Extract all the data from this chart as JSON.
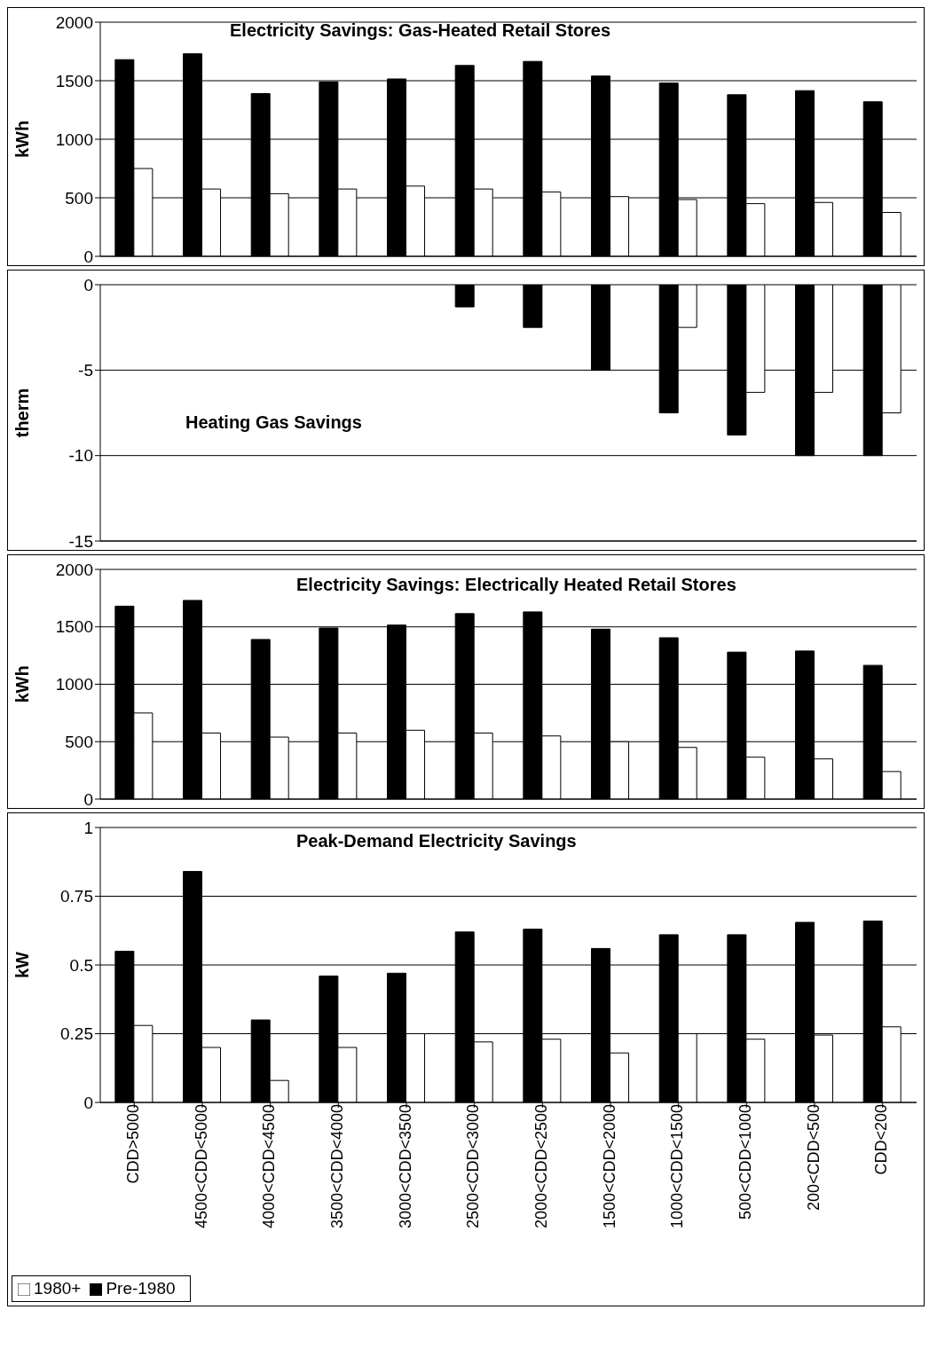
{
  "chart_data": [
    {
      "type": "bar",
      "title": "Electricity Savings: Gas-Heated Retail Stores",
      "ylabel": "kWh",
      "categories": [
        null,
        null,
        null,
        null,
        null,
        null,
        null,
        null,
        null,
        null,
        null,
        null
      ],
      "series": [
        {
          "color": "#000000",
          "values": [
            1680,
            1730,
            1390,
            1490,
            1515,
            1630,
            1665,
            1540,
            1480,
            1380,
            1415,
            1320
          ]
        },
        {
          "color": "#ffffff",
          "values": [
            750,
            575,
            535,
            575,
            600,
            575,
            550,
            510,
            485,
            450,
            460,
            375
          ]
        }
      ],
      "ylim": [
        0,
        2000
      ],
      "yticks": [
        0,
        500,
        1000,
        1500,
        2000
      ],
      "grid": "y",
      "tick_labels": "y",
      "legend": false
    },
    {
      "type": "bar",
      "title": "Heating Gas Savings",
      "ylabel": "therm",
      "categories": [
        null,
        null,
        null,
        null,
        null,
        null,
        null,
        null,
        null,
        null,
        null,
        null
      ],
      "series": [
        {
          "color": "#000000",
          "values": [
            0,
            0,
            0,
            0,
            0,
            -1.3,
            -2.5,
            -5,
            -7.5,
            -8.8,
            -10,
            -10
          ]
        },
        {
          "color": "#ffffff",
          "values": [
            0,
            0,
            0,
            0,
            0,
            0,
            0,
            0,
            -2.5,
            -6.3,
            -6.3,
            -7.5
          ]
        }
      ],
      "ylim": [
        -15,
        0
      ],
      "yticks": [
        -15,
        -10,
        -5,
        0
      ],
      "grid": "y",
      "tick_labels": "y",
      "legend": false
    },
    {
      "type": "bar",
      "title": "Electricity Savings: Electrically Heated Retail Stores",
      "ylabel": "kWh",
      "categories": [
        null,
        null,
        null,
        null,
        null,
        null,
        null,
        null,
        null,
        null,
        null,
        null
      ],
      "series": [
        {
          "color": "#000000",
          "values": [
            1680,
            1730,
            1390,
            1490,
            1515,
            1615,
            1630,
            1480,
            1405,
            1280,
            1290,
            1165
          ]
        },
        {
          "color": "#ffffff",
          "values": [
            750,
            575,
            540,
            575,
            600,
            575,
            550,
            500,
            450,
            365,
            350,
            240
          ]
        }
      ],
      "ylim": [
        0,
        2000
      ],
      "yticks": [
        0,
        500,
        1000,
        1500,
        2000
      ],
      "grid": "y",
      "tick_labels": "y",
      "legend": false
    },
    {
      "type": "bar",
      "title": "Peak-Demand Electricity Savings",
      "ylabel": "kW",
      "categories": [
        "CDD>5000",
        "4500<CDD<5000",
        "4000<CDD<4500",
        "3500<CDD<4000",
        "3000<CDD<3500",
        "2500<CDD<3000",
        "2000<CDD<2500",
        "1500<CDD<2000",
        "1000<CDD<1500",
        "500<CDD<1000",
        "200<CDD<500",
        "CDD<200"
      ],
      "series": [
        {
          "name": "Pre-1980",
          "color": "#000000",
          "values": [
            0.55,
            0.84,
            0.3,
            0.46,
            0.47,
            0.62,
            0.63,
            0.56,
            0.61,
            0.61,
            0.655,
            0.66
          ]
        },
        {
          "name": "1980+",
          "color": "#ffffff",
          "values": [
            0.28,
            0.2,
            0.08,
            0.2,
            0.25,
            0.22,
            0.23,
            0.18,
            0.25,
            0.23,
            0.245,
            0.275
          ]
        }
      ],
      "ylim": [
        0,
        1
      ],
      "yticks": [
        0,
        0.25,
        0.5,
        0.75,
        1
      ],
      "grid": "y",
      "legend": "bottom"
    }
  ]
}
